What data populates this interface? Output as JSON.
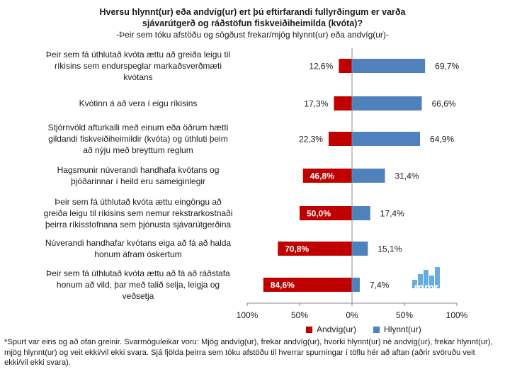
{
  "chart_data": {
    "type": "bar",
    "orientation": "horizontal-diverging",
    "title_lines": [
      "Hversu hlynnt(ur) eða andvíg(ur) ert þú eftirfarandi fullyrðingum er varða",
      "sjávarútgerð og ráðstöfun fiskveiðiheimilda (kvóta)?"
    ],
    "subtitle": "-Þeir sem tóku afstöðu og sögðust frekar/mjög hlynnt(ur) eða andvíg(ur)-",
    "categories": [
      [
        "Þeir sem fá úthlutað kvóta ættu að greiða leigu til",
        "ríkisins sem endurspeglar markaðsverðmæti",
        "kvótans"
      ],
      [
        "Kvótinn á að vera í eigu ríkisins"
      ],
      [
        "Stjórnvöld afturkalli með einum eða öðrum hætti",
        "gildandi fiskveiðiheimildir (kvóta) og úthluti þeim",
        "að nýju með breyttum reglum"
      ],
      [
        "Hagsmunir núverandi handhafa kvótans og",
        "þjóðarinnar í heild eru sameiginlegir"
      ],
      [
        "Þeir sem fá úthlutað kvóta ættu eingöngu að",
        "greiða leigu til ríkisins sem nemur rekstrarkostnaði",
        "þeirra ríkisstofnana sem þjónusta sjávarútgerðina"
      ],
      [
        "Núverandi handhafar kvótans eiga að fá að halda",
        "honum áfram óskertum"
      ],
      [
        "Þeir sem fá úthlutað kvóta ættu að fá að ráðstafa",
        "honum að vild, þar með talið selja, leigja og",
        "veðsetja"
      ]
    ],
    "series": [
      {
        "name": "Andvíg(ur)",
        "color": "#c00000",
        "values": [
          12.6,
          17.3,
          22.3,
          46.8,
          50.0,
          70.8,
          84.6
        ],
        "labels": [
          "12,6%",
          "17,3%",
          "22,3%",
          "46,8%",
          "50,0%",
          "70,8%",
          "84,6%"
        ]
      },
      {
        "name": "Hlynnt(ur)",
        "color": "#4f81bd",
        "values": [
          69.7,
          66.6,
          64.9,
          31.4,
          17.4,
          15.1,
          7.4
        ],
        "labels": [
          "69,7%",
          "66,6%",
          "64,9%",
          "31,4%",
          "17,4%",
          "15,1%",
          "7,4%"
        ]
      }
    ],
    "xlim": [
      -100,
      100
    ],
    "x_ticks": [
      -100,
      -50,
      0,
      50,
      100
    ],
    "x_tick_labels": [
      "100%",
      "50%",
      "0%",
      "50%",
      "100%"
    ],
    "grid": false,
    "legend_position": "bottom"
  },
  "footnote": "*Spurt var eins og að ofan greinir. Svarmöguleikar voru: Mjög andvíg(ur), frekar andvíg(ur), hvorki hlynnt(ur) né andvíg(ur), frekar hlynnt(ur), mjög hlynnt(ur) og veit ekki/vil ekki svara. Sjá fjölda þeirra sem tóku afstöðu til hverrar spurningar í töflu hér að aftan (aðrir svöruðu veit ekki/vil ekki svara).",
  "logo": {
    "text": "mmr",
    "color": "#4a9fd8"
  }
}
